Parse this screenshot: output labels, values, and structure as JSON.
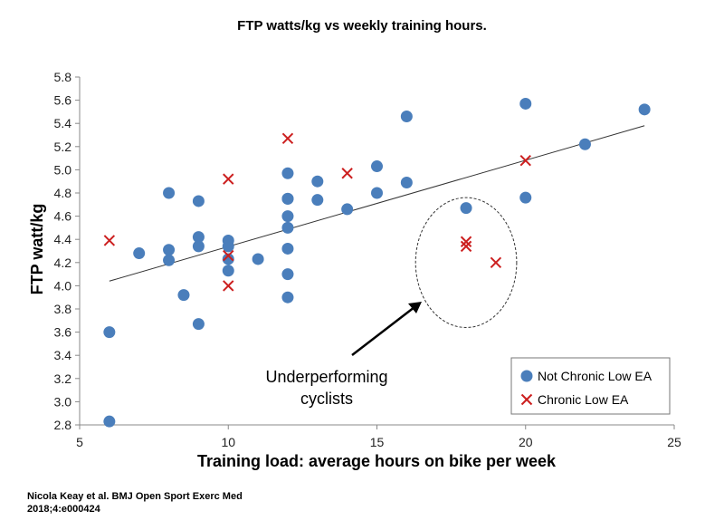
{
  "chart_data": {
    "type": "scatter",
    "title": "FTP watts/kg vs weekly training hours.",
    "xlabel": "Training load: average hours on bike per week",
    "ylabel": "FTP watt/kg",
    "xlim": [
      5,
      25
    ],
    "ylim": [
      2.8,
      5.8
    ],
    "xticks": [
      5,
      10,
      15,
      20,
      25
    ],
    "yticks": [
      2.8,
      3.0,
      3.2,
      3.4,
      3.6,
      3.8,
      4.0,
      4.2,
      4.4,
      4.6,
      4.8,
      5.0,
      5.2,
      5.4,
      5.6,
      5.8
    ],
    "grid": false,
    "legend_position": "bottom-right",
    "series": [
      {
        "name": "Not Chronic Low EA",
        "marker": "circle",
        "color": "#4a7ebb",
        "x": [
          6,
          6,
          7,
          8,
          8,
          8,
          8.5,
          9,
          9,
          9,
          9,
          10,
          10,
          10,
          10,
          11,
          12,
          12,
          12,
          12,
          12,
          12,
          12,
          12,
          13,
          13,
          14,
          15,
          15,
          16,
          16,
          18,
          20,
          20,
          22,
          24
        ],
        "y": [
          3.6,
          2.83,
          4.28,
          4.8,
          4.31,
          4.22,
          3.92,
          4.73,
          4.42,
          4.34,
          3.67,
          4.39,
          4.34,
          4.23,
          4.13,
          4.23,
          4.97,
          4.75,
          4.6,
          4.5,
          4.32,
          4.1,
          3.9,
          4.75,
          4.9,
          4.74,
          4.66,
          5.03,
          4.8,
          5.46,
          4.89,
          4.67,
          5.57,
          4.76,
          5.22,
          5.52
        ]
      },
      {
        "name": "Chronic Low EA",
        "marker": "x",
        "color": "#cc1f1f",
        "x": [
          6,
          10,
          10,
          10,
          12,
          14,
          18,
          18,
          19,
          20
        ],
        "y": [
          4.39,
          4.92,
          4.26,
          4.0,
          5.27,
          4.97,
          4.38,
          4.34,
          4.2,
          5.08
        ]
      }
    ],
    "trendline": {
      "x": [
        6,
        24
      ],
      "y": [
        4.04,
        5.38
      ]
    },
    "annotation": {
      "text_lines": [
        "Underperforming",
        "cyclists"
      ],
      "ellipse_center": [
        18,
        4.2
      ],
      "ellipse_radius": [
        1.7,
        0.56
      ]
    }
  },
  "citation": {
    "line1": "Nicola Keay et al. BMJ Open Sport Exerc Med",
    "line2": "2018;4:e000424"
  }
}
